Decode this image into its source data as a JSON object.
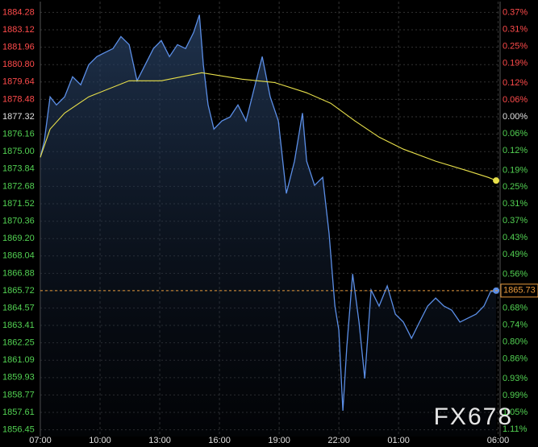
{
  "chart_data": {
    "type": "line",
    "watermark": "FX678",
    "xlim": [
      0,
      23.1
    ],
    "xticks": [
      {
        "value": 0,
        "label": "07:00"
      },
      {
        "value": 3,
        "label": "10:00"
      },
      {
        "value": 6,
        "label": "13:00"
      },
      {
        "value": 9,
        "label": "16:00"
      },
      {
        "value": 12,
        "label": "19:00"
      },
      {
        "value": 15,
        "label": "22:00"
      },
      {
        "value": 18,
        "label": "01:00"
      },
      {
        "value": 23,
        "label": "06:00"
      }
    ],
    "ylim": [
      1856.0,
      1885.0
    ],
    "yticks": [
      1884.28,
      1883.12,
      1881.96,
      {
        "value": 1880.8,
        "label": "1880.80"
      },
      1879.64,
      1878.48,
      1877.32,
      1876.16,
      {
        "value": 1875,
        "label": "1875.00"
      },
      1873.84,
      1872.68,
      1871.52,
      1870.36,
      {
        "value": 1869.2,
        "label": "1869.20"
      },
      1868.04,
      1866.88,
      1865.72,
      1864.57,
      1863.41,
      1862.25,
      1861.09,
      1859.93,
      1858.77,
      1857.61,
      1856.45
    ],
    "y2lim": [
      -1.136,
      0.409
    ],
    "y2ticks": [
      {
        "value": 0.37,
        "label": "0.37%"
      },
      {
        "value": 0.31,
        "label": "0.31%"
      },
      {
        "value": 0.25,
        "label": "0.25%"
      },
      {
        "value": 0.19,
        "label": "0.19%"
      },
      {
        "value": 0.12,
        "label": "0.12%"
      },
      {
        "value": 0.06,
        "label": "0.06%"
      },
      {
        "value": 0,
        "label": "0.00%"
      },
      {
        "value": -0.06,
        "label": "0.06%"
      },
      {
        "value": -0.12,
        "label": "0.12%"
      },
      {
        "value": -0.19,
        "label": "0.19%"
      },
      {
        "value": -0.25,
        "label": "0.25%"
      },
      {
        "value": -0.31,
        "label": "0.31%"
      },
      {
        "value": -0.37,
        "label": "0.37%"
      },
      {
        "value": -0.43,
        "label": "0.43%"
      },
      {
        "value": -0.49,
        "label": "0.49%"
      },
      {
        "value": -0.56,
        "label": "0.56%"
      },
      {
        "value": -0.62,
        "label": "0.62%"
      },
      {
        "value": -0.68,
        "label": "0.68%"
      },
      {
        "value": -0.74,
        "label": "0.74%"
      },
      {
        "value": -0.8,
        "label": "0.80%"
      },
      {
        "value": -0.86,
        "label": "0.86%"
      },
      {
        "value": -0.93,
        "label": "0.93%"
      },
      {
        "value": -0.99,
        "label": "0.99%"
      },
      {
        "value": -1.05,
        "label": "1.05%"
      },
      {
        "value": -1.11,
        "label": "1.11%"
      }
    ],
    "series": [
      {
        "color": "#5b8ee6",
        "x": [
          0,
          0.2,
          0.49,
          0.81,
          1.22,
          1.62,
          2.03,
          2.43,
          2.84,
          3.24,
          3.65,
          4.05,
          4.46,
          4.86,
          5.27,
          5.68,
          6.08,
          6.49,
          6.89,
          7.3,
          7.7,
          7.99,
          8.19,
          8.43,
          8.72,
          9.12,
          9.53,
          9.93,
          10.34,
          10.74,
          11.15,
          11.55,
          11.96,
          12.36,
          12.77,
          13.17,
          13.38,
          13.78,
          14.19,
          14.51,
          14.8,
          15.0,
          15.2,
          15.4,
          15.69,
          16.01,
          16.3,
          16.62,
          17.02,
          17.43,
          17.84,
          18.24,
          18.65,
          19.05,
          19.46,
          19.86,
          20.27,
          20.67,
          21.08,
          21.48,
          21.89,
          22.29,
          22.62,
          22.9
        ],
        "values": [
          1874.62,
          1875.7,
          1878.65,
          1878.11,
          1878.65,
          1879.99,
          1879.45,
          1880.79,
          1881.33,
          1881.6,
          1881.87,
          1882.67,
          1882.13,
          1879.72,
          1880.79,
          1881.87,
          1882.4,
          1881.33,
          1882.13,
          1881.87,
          1882.94,
          1884.12,
          1880.79,
          1878.11,
          1876.5,
          1877.04,
          1877.31,
          1878.11,
          1877.04,
          1879.18,
          1881.33,
          1878.65,
          1877.04,
          1872.21,
          1874.36,
          1877.57,
          1874.36,
          1872.75,
          1873.28,
          1869.53,
          1864.7,
          1863.09,
          1857.72,
          1862.02,
          1866.84,
          1863.63,
          1859.87,
          1865.77,
          1864.7,
          1866.04,
          1864.16,
          1863.63,
          1862.55,
          1863.63,
          1864.7,
          1865.23,
          1864.7,
          1864.43,
          1863.63,
          1863.89,
          1864.16,
          1864.7,
          1865.66,
          1865.73
        ]
      },
      {
        "color": "#e8e04a",
        "x": [
          0,
          0.49,
          1.22,
          2.43,
          4.46,
          6.08,
          8.11,
          10.13,
          11.76,
          13.38,
          14.59,
          15.81,
          17.02,
          18.24,
          19.86,
          21.48,
          22.5,
          22.9
        ],
        "values": [
          1874.62,
          1876.5,
          1877.57,
          1878.65,
          1879.72,
          1879.72,
          1880.26,
          1879.83,
          1879.61,
          1878.92,
          1878.22,
          1877.04,
          1875.96,
          1875.16,
          1874.36,
          1873.71,
          1873.28,
          1873.07
        ]
      }
    ]
  }
}
